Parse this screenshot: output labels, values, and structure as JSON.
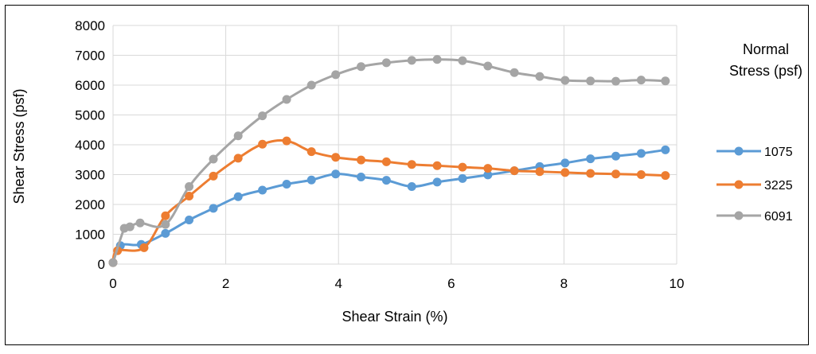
{
  "chart_data": {
    "type": "line",
    "title": "",
    "xlabel": "Shear Strain (%)",
    "ylabel": "Shear Stress (psf)",
    "xlim": [
      0,
      10
    ],
    "ylim": [
      0,
      8000
    ],
    "xticks": [
      0,
      2,
      4,
      6,
      8,
      10
    ],
    "yticks": [
      0,
      1000,
      2000,
      3000,
      4000,
      5000,
      6000,
      7000,
      8000
    ],
    "grid": true,
    "legend": {
      "title_line1": "Normal",
      "title_line2": "Stress   (psf)",
      "placement": "right"
    },
    "series": [
      {
        "name": "1075",
        "color": "#5B9BD5",
        "x": [
          0,
          0.13,
          0.5,
          0.93,
          1.35,
          1.78,
          2.22,
          2.65,
          3.08,
          3.52,
          3.95,
          4.4,
          4.85,
          5.3,
          5.75,
          6.2,
          6.65,
          7.12,
          7.57,
          8.02,
          8.47,
          8.92,
          9.37,
          9.8
        ],
        "y": [
          50,
          620,
          660,
          1030,
          1480,
          1870,
          2260,
          2480,
          2680,
          2820,
          3020,
          2920,
          2810,
          2600,
          2750,
          2870,
          2990,
          3130,
          3270,
          3390,
          3530,
          3620,
          3710,
          3830
        ]
      },
      {
        "name": "3225",
        "color": "#ED7D31",
        "x": [
          0,
          0.08,
          0.55,
          0.93,
          1.35,
          1.78,
          2.22,
          2.65,
          3.08,
          3.52,
          3.95,
          4.4,
          4.85,
          5.3,
          5.75,
          6.2,
          6.65,
          7.12,
          7.57,
          8.02,
          8.47,
          8.92,
          9.37,
          9.8
        ],
        "y": [
          50,
          450,
          550,
          1620,
          2280,
          2950,
          3550,
          4020,
          4130,
          3770,
          3580,
          3490,
          3430,
          3340,
          3300,
          3250,
          3210,
          3130,
          3100,
          3070,
          3040,
          3020,
          3000,
          2970
        ]
      },
      {
        "name": "6091",
        "color": "#A5A5A5",
        "x": [
          0,
          0.2,
          0.3,
          0.48,
          0.93,
          1.35,
          1.78,
          2.22,
          2.65,
          3.08,
          3.52,
          3.95,
          4.4,
          4.85,
          5.3,
          5.75,
          6.2,
          6.65,
          7.12,
          7.57,
          8.02,
          8.47,
          8.92,
          9.37,
          9.8
        ],
        "y": [
          50,
          1200,
          1250,
          1380,
          1330,
          2600,
          3520,
          4300,
          4970,
          5520,
          6000,
          6350,
          6620,
          6750,
          6830,
          6860,
          6820,
          6640,
          6420,
          6290,
          6160,
          6140,
          6130,
          6170,
          6140
        ]
      }
    ]
  }
}
